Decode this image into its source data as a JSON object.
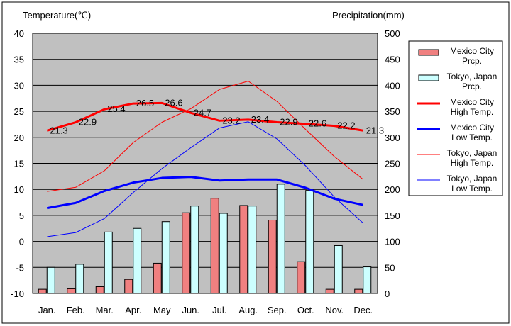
{
  "chart_data": {
    "type": "bar+line",
    "categories": [
      "Jan.",
      "Feb.",
      "Mar.",
      "Apr.",
      "May",
      "Jun.",
      "Jul.",
      "Aug.",
      "Sep.",
      "Oct.",
      "Nov.",
      "Dec."
    ],
    "left_axis": {
      "label": "Temperature(℃)",
      "min": -10,
      "max": 40,
      "ticks": [
        40,
        35,
        30,
        25,
        20,
        15,
        10,
        5,
        0,
        -5,
        -10
      ]
    },
    "right_axis": {
      "label": "Precipitation(mm)",
      "min": 0,
      "max": 500,
      "ticks": [
        500,
        450,
        400,
        350,
        300,
        250,
        200,
        150,
        100,
        50,
        0
      ]
    },
    "grid": true,
    "legend_position": "right",
    "series": [
      {
        "name": "Mexico City Prcp.",
        "legend_lines": [
          "Mexico City",
          "Prcp."
        ],
        "kind": "bar",
        "axis": "right",
        "color": "#f08080",
        "values": [
          8,
          9,
          13,
          27,
          58,
          155,
          183,
          169,
          141,
          61,
          8,
          8
        ]
      },
      {
        "name": "Tokyo, Japan Prcp.",
        "legend_lines": [
          "Tokyo, Japan",
          "Prcp."
        ],
        "kind": "bar",
        "axis": "right",
        "color": "#ccffff",
        "values": [
          50,
          56,
          118,
          125,
          138,
          168,
          154,
          168,
          210,
          198,
          92,
          51
        ]
      },
      {
        "name": "Mexico City High Temp.",
        "legend_lines": [
          "Mexico City",
          "High Temp."
        ],
        "kind": "line",
        "axis": "left",
        "color": "#ff0000",
        "width": 3,
        "values": [
          21.3,
          22.9,
          25.4,
          26.5,
          26.6,
          24.7,
          23.2,
          23.4,
          22.9,
          22.6,
          22.2,
          21.3
        ],
        "data_labels": [
          "21.3",
          "22.9",
          "25.4",
          "26.5",
          "26.6",
          "24.7",
          "23.2",
          "23.4",
          "22.9",
          "22.6",
          "22.2",
          "21.3"
        ]
      },
      {
        "name": "Mexico City Low Temp.",
        "legend_lines": [
          "Mexico City",
          "Low Temp."
        ],
        "kind": "line",
        "axis": "left",
        "color": "#0000ff",
        "width": 3,
        "values": [
          6.4,
          7.4,
          9.7,
          11.3,
          12.2,
          12.4,
          11.7,
          11.9,
          11.9,
          10.3,
          8.2,
          7.0
        ]
      },
      {
        "name": "Tokyo, Japan High Temp.",
        "legend_lines": [
          "Tokyo, Japan",
          "High Temp."
        ],
        "kind": "line",
        "axis": "left",
        "color": "#ff0000",
        "width": 1,
        "values": [
          9.6,
          10.4,
          13.6,
          19.0,
          22.9,
          25.5,
          29.2,
          30.8,
          26.9,
          21.5,
          16.3,
          11.9
        ]
      },
      {
        "name": "Tokyo, Japan Low Temp.",
        "legend_lines": [
          "Tokyo, Japan",
          "Low Temp."
        ],
        "kind": "line",
        "axis": "left",
        "color": "#0000ff",
        "width": 1,
        "values": [
          0.9,
          1.7,
          4.4,
          9.4,
          14.0,
          18.0,
          21.8,
          23.0,
          19.7,
          14.5,
          8.5,
          3.5
        ]
      }
    ]
  }
}
